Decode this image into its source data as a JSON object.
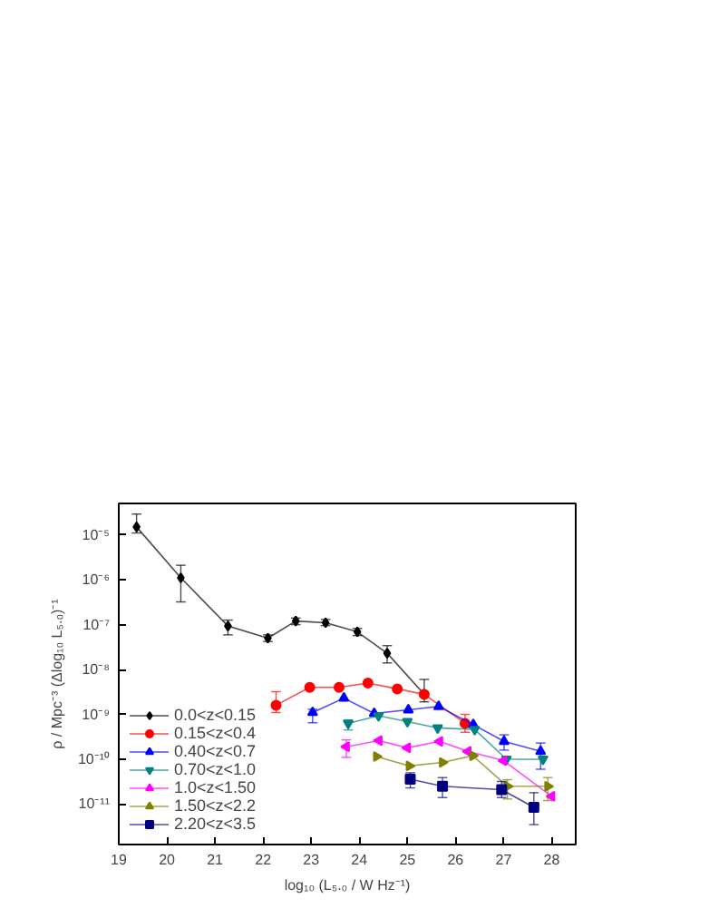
{
  "chart_data": {
    "type": "line",
    "xlabel": "log₁₀ (L₅.₀ / W Hz⁻¹)",
    "ylabel": "ρ / Mpc⁻³ (Δlog₁₀ L₅.₀)⁻¹",
    "log": "y",
    "xlim": [
      19,
      28.5
    ],
    "ylim": [
      1.26e-12,
      5e-05
    ],
    "xticks": [
      19,
      20,
      21,
      22,
      23,
      24,
      25,
      26,
      27,
      28
    ],
    "yticks": [
      {
        "value": 1e-11,
        "label": "10⁻¹¹"
      },
      {
        "value": 1e-10,
        "label": "10⁻¹⁰"
      },
      {
        "value": 1e-09,
        "label": "10⁻⁹"
      },
      {
        "value": 1e-08,
        "label": "10⁻⁸"
      },
      {
        "value": 1e-07,
        "label": "10⁻⁷"
      },
      {
        "value": 1e-06,
        "label": "10⁻⁶"
      },
      {
        "value": 1e-05,
        "label": "10⁻⁵"
      }
    ],
    "grid": false,
    "legend": "bottom left",
    "series": [
      {
        "name": "0.0<z<0.15",
        "color": "#000000",
        "marker": "diamond",
        "x": [
          19.37,
          20.29,
          21.27,
          22.1,
          22.68,
          23.3,
          23.96,
          24.58,
          25.35
        ],
        "values": [
          1.5e-05,
          1.1e-06,
          9.3e-08,
          5e-08,
          1.2e-07,
          1.1e-07,
          6.9e-08,
          2.3e-08,
          2.8e-09
        ],
        "errors": [
          [
            1.1e-05,
            2.9e-05
          ],
          [
            3.2e-07,
            2.1e-06
          ],
          [
            5.9e-08,
            1.26e-07
          ],
          [
            4.2e-08,
            5.9e-08
          ],
          [
            1e-07,
            1.4e-07
          ],
          [
            9.5e-08,
            1.3e-07
          ],
          [
            5.7e-08,
            8.2e-08
          ],
          [
            1.4e-08,
            3.4e-08
          ],
          [
            1.9e-09,
            6e-09
          ]
        ]
      },
      {
        "name": "0.15<z<0.4",
        "color": "#ff0000",
        "marker": "circle",
        "x": [
          22.27,
          22.97,
          23.58,
          24.18,
          24.79,
          25.35,
          26.2
        ],
        "values": [
          1.6e-09,
          4e-09,
          4e-09,
          5e-09,
          3.7e-09,
          2.8e-09,
          6.3e-10
        ],
        "errors": [
          [
            1.1e-09,
            3.2e-09
          ],
          null,
          null,
          null,
          null,
          null,
          [
            4e-10,
            1e-09
          ]
        ]
      },
      {
        "name": "0.40<z<0.7",
        "color": "#0000ff",
        "marker": "triangle",
        "x": [
          23.03,
          23.68,
          24.31,
          25.02,
          25.65,
          26.37,
          27.01,
          27.77
        ],
        "values": [
          1.1e-09,
          2.3e-09,
          1.05e-09,
          1.26e-09,
          1.5e-09,
          5.9e-10,
          2.5e-10,
          1.5e-10
        ],
        "errors": [
          [
            6.5e-10,
            1.3e-09
          ],
          null,
          null,
          null,
          null,
          null,
          [
            1.6e-10,
            3.5e-10
          ],
          [
            6e-11,
            2.3e-10
          ]
        ]
      },
      {
        "name": "0.70<z<1.0",
        "color": "#008080",
        "marker": "triangle_down",
        "x": [
          23.77,
          24.4,
          25.0,
          25.63,
          26.4,
          27.06,
          27.82
        ],
        "values": [
          6.3e-10,
          9.3e-10,
          6.9e-10,
          5e-10,
          4.6e-10,
          1e-10,
          1e-10
        ],
        "errors": [
          [
            4.5e-10,
            7.5e-10
          ],
          null,
          null,
          null,
          null,
          null,
          null
        ]
      },
      {
        "name": "1.0<z<1.50",
        "color": "#ff00ff",
        "marker": "triangle_left",
        "x": [
          23.73,
          24.41,
          25.0,
          25.67,
          26.26,
          27.0,
          28.0
        ],
        "values": [
          1.9e-10,
          2.6e-10,
          1.8e-10,
          2.5e-10,
          1.5e-10,
          9.3e-11,
          1.5e-11
        ],
        "errors": [
          [
            1.1e-10,
            2.7e-10
          ],
          null,
          null,
          null,
          null,
          null,
          null
        ]
      },
      {
        "name": "1.50<z<2.2",
        "color": "#808000",
        "marker": "triangle_right",
        "x": [
          24.36,
          25.04,
          25.73,
          26.36,
          27.08,
          27.92
        ],
        "values": [
          1.15e-10,
          7.1e-11,
          8.5e-11,
          1.2e-10,
          2.5e-11,
          2.5e-11
        ],
        "errors": [
          null,
          null,
          null,
          null,
          [
            1.3e-11,
            3.5e-11
          ],
          [
            1.2e-11,
            3.9e-11
          ]
        ]
      },
      {
        "name": "2.20<z<3.5",
        "color": "#000080",
        "marker": "square",
        "x": [
          25.06,
          25.73,
          26.96,
          27.63
        ],
        "values": [
          3.6e-11,
          2.5e-11,
          2.1e-11,
          8.5e-12
        ],
        "errors": [
          [
            2.3e-11,
            5e-11
          ],
          [
            1.4e-11,
            3.9e-11
          ],
          [
            1.4e-11,
            3.2e-11
          ],
          [
            3.5e-12,
            1.8e-11
          ]
        ]
      }
    ]
  }
}
